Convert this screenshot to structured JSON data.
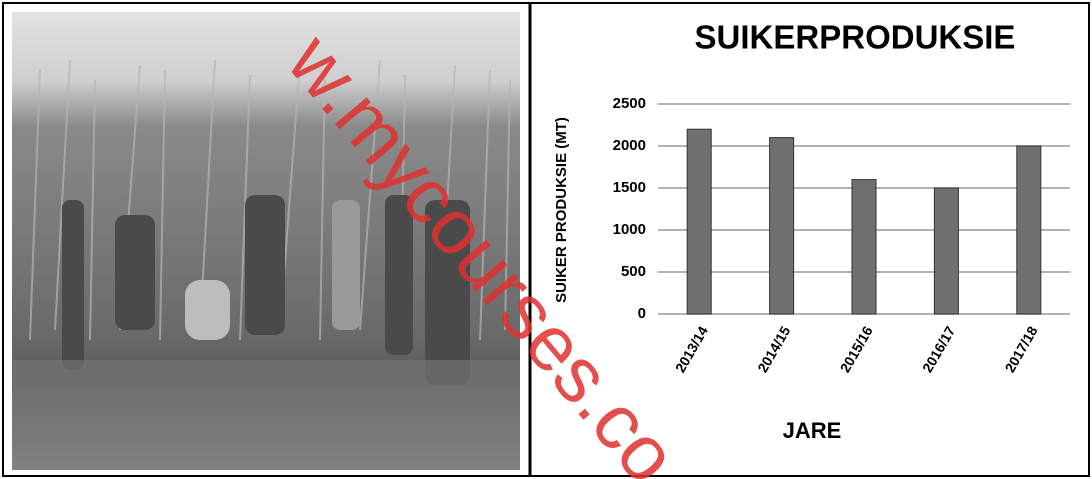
{
  "chart_data": {
    "type": "bar",
    "title": "SUIKERPRODUKSIE",
    "x_label": "JARE",
    "y_label": "SUIKER PRODUKSIE (MT)",
    "categories": [
      "2013/14",
      "2014/15",
      "2015/16",
      "2016/17",
      "2017/18"
    ],
    "values": [
      2200,
      2100,
      1600,
      1500,
      2000
    ],
    "color": "#707070",
    "ylim": [
      0,
      2500
    ],
    "yticks": [
      0,
      500,
      1000,
      1500,
      2000,
      2500
    ],
    "grid": true
  },
  "watermark": "w.mycourses.co"
}
